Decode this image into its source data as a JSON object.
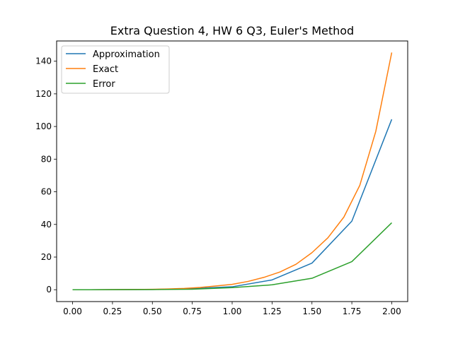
{
  "chart_data": {
    "type": "line",
    "title": "Extra Question 4, HW 6 Q3, Euler's Method",
    "xlabel": "",
    "ylabel": "",
    "xlim": [
      -0.1,
      2.1
    ],
    "ylim": [
      -7.26,
      152.4
    ],
    "xticks": [
      0.0,
      0.25,
      0.5,
      0.75,
      1.0,
      1.25,
      1.5,
      1.75,
      2.0
    ],
    "xtick_labels": [
      "0.00",
      "0.25",
      "0.50",
      "0.75",
      "1.00",
      "1.25",
      "1.50",
      "1.75",
      "2.00"
    ],
    "yticks": [
      0,
      20,
      40,
      60,
      80,
      100,
      120,
      140
    ],
    "ytick_labels": [
      "0",
      "20",
      "40",
      "60",
      "80",
      "100",
      "120",
      "140"
    ],
    "grid": false,
    "legend_position": "top-left",
    "series": [
      {
        "name": "Approximation",
        "color": "#1f77b4",
        "x": [
          0.0,
          0.25,
          0.5,
          0.75,
          1.0,
          1.25,
          1.5,
          1.75,
          2.0
        ],
        "y": [
          0.0,
          0.02,
          0.17,
          0.7,
          1.8,
          6.0,
          16.3,
          42.0,
          104.4
        ]
      },
      {
        "name": "Exact",
        "color": "#ff7f0e",
        "x": [
          0.0,
          0.1,
          0.2,
          0.3,
          0.4,
          0.5,
          0.6,
          0.7,
          0.8,
          0.9,
          1.0,
          1.1,
          1.2,
          1.3,
          1.4,
          1.5,
          1.6,
          1.7,
          1.8,
          1.9,
          2.0
        ],
        "y": [
          0.0,
          0.01,
          0.03,
          0.07,
          0.14,
          0.26,
          0.46,
          0.81,
          1.38,
          2.3,
          3.3,
          5.1,
          7.6,
          10.9,
          15.6,
          22.7,
          31.8,
          44.5,
          64.0,
          97.0,
          145.3
        ]
      },
      {
        "name": "Error",
        "color": "#2ca02c",
        "x": [
          0.0,
          0.25,
          0.5,
          0.75,
          1.0,
          1.25,
          1.5,
          1.75,
          2.0
        ],
        "y": [
          0.0,
          0.03,
          0.1,
          0.3,
          1.3,
          3.0,
          7.0,
          17.2,
          41.0
        ]
      }
    ]
  }
}
